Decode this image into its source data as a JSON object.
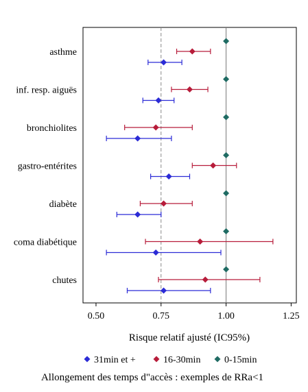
{
  "chart_data": {
    "type": "scatter",
    "xlabel": "Risque relatif ajusté (IC95%)",
    "caption": "Allongement des temps d\"accès : exemples de RRa<1",
    "xlim": [
      0.45,
      1.27
    ],
    "xticks": [
      0.5,
      0.75,
      1.0,
      1.25
    ],
    "xtick_labels": [
      "0.50",
      "0.75",
      "1.00",
      "1.25"
    ],
    "reference_lines": [
      {
        "x": 0.75,
        "style": "dashed",
        "color": "#888888"
      },
      {
        "x": 1.0,
        "style": "solid",
        "color": "#777777"
      }
    ],
    "categories": [
      "asthme",
      "inf. resp. aiguës",
      "bronchiolites",
      "gastro-entérites",
      "diabète",
      "coma diabétique",
      "chutes"
    ],
    "series": [
      {
        "name": "0-15min",
        "color": "#1f6b63",
        "points": [
          {
            "category": "asthme",
            "rr": 1.0
          },
          {
            "category": "inf. resp. aiguës",
            "rr": 1.0
          },
          {
            "category": "bronchiolites",
            "rr": 1.0
          },
          {
            "category": "gastro-entérites",
            "rr": 1.0
          },
          {
            "category": "diabète",
            "rr": 1.0
          },
          {
            "category": "coma diabétique",
            "rr": 1.0
          },
          {
            "category": "chutes",
            "rr": 1.0
          }
        ]
      },
      {
        "name": "16-30min",
        "color": "#b71c3a",
        "points": [
          {
            "category": "asthme",
            "rr": 0.87,
            "low": 0.81,
            "high": 0.94
          },
          {
            "category": "inf. resp. aiguës",
            "rr": 0.86,
            "low": 0.79,
            "high": 0.93
          },
          {
            "category": "bronchiolites",
            "rr": 0.73,
            "low": 0.61,
            "high": 0.87
          },
          {
            "category": "gastro-entérites",
            "rr": 0.95,
            "low": 0.87,
            "high": 1.04
          },
          {
            "category": "diabète",
            "rr": 0.76,
            "low": 0.67,
            "high": 0.87
          },
          {
            "category": "coma diabétique",
            "rr": 0.9,
            "low": 0.69,
            "high": 1.18
          },
          {
            "category": "chutes",
            "rr": 0.92,
            "low": 0.74,
            "high": 1.13
          }
        ]
      },
      {
        "name": "31min et +",
        "color": "#2b2bd6",
        "points": [
          {
            "category": "asthme",
            "rr": 0.76,
            "low": 0.7,
            "high": 0.83
          },
          {
            "category": "inf. resp. aiguës",
            "rr": 0.74,
            "low": 0.68,
            "high": 0.8
          },
          {
            "category": "bronchiolites",
            "rr": 0.66,
            "low": 0.54,
            "high": 0.79
          },
          {
            "category": "gastro-entérites",
            "rr": 0.78,
            "low": 0.71,
            "high": 0.86
          },
          {
            "category": "diabète",
            "rr": 0.66,
            "low": 0.58,
            "high": 0.75
          },
          {
            "category": "coma diabétique",
            "rr": 0.73,
            "low": 0.54,
            "high": 0.98
          },
          {
            "category": "chutes",
            "rr": 0.76,
            "low": 0.62,
            "high": 0.94
          }
        ]
      }
    ],
    "legend": {
      "placement": "bottom",
      "order": [
        "31min et +",
        "16-30min",
        "0-15min"
      ]
    },
    "grid": false
  }
}
